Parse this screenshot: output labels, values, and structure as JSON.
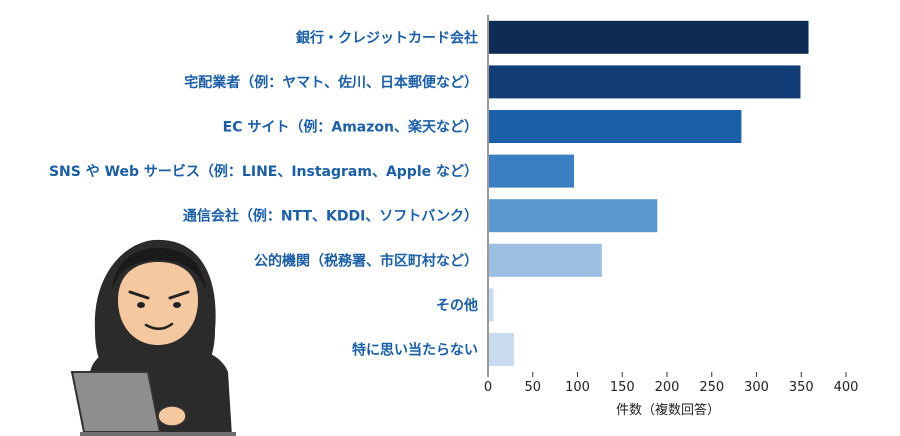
{
  "chart_data": {
    "type": "bar",
    "orientation": "horizontal",
    "categories": [
      "銀行・クレジットカード会社",
      "宅配業者（例：ヤマト、佐川、日本郵便など）",
      "EC サイト（例：Amazon、楽天など）",
      "SNS や Web サービス（例：LINE、Instagram、Apple など）",
      "通信会社（例：NTT、KDDI、ソフトバンク）",
      "公的機関（税務署、市区町村など）",
      "その他",
      "特に思い当たらない"
    ],
    "values": [
      357,
      348,
      282,
      95,
      188,
      126,
      5,
      28
    ],
    "bar_colors": [
      "#0d2b55",
      "#123c75",
      "#1a5fa8",
      "#3a7fc1",
      "#5a97cc",
      "#9bbfe0",
      "#c9dbee",
      "#c9dbee"
    ],
    "xlabel": "件数（複数回答）",
    "ylabel": "",
    "xlim": [
      0,
      400
    ],
    "xticks": [
      0,
      50,
      100,
      150,
      200,
      250,
      300,
      350,
      400
    ],
    "grid": false,
    "label_color": "#1a5fa8"
  },
  "illustration": {
    "icon": "hooded-hacker-with-laptop-icon"
  }
}
